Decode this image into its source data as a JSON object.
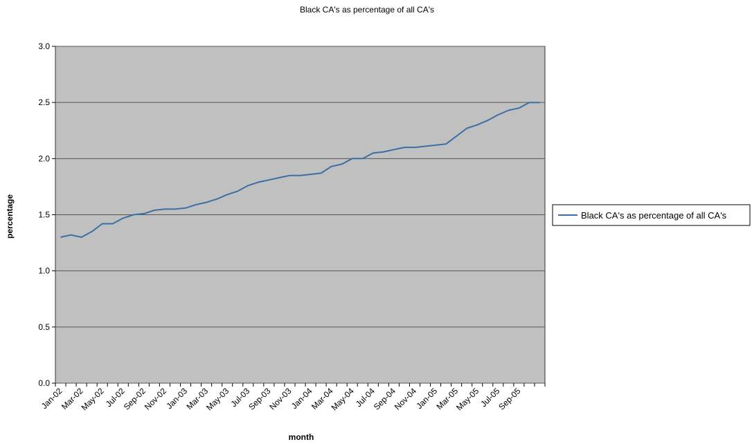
{
  "chart_data": {
    "type": "line",
    "title": "Black CA's as percentage of all CA's",
    "xlabel": "month",
    "ylabel": "percentage",
    "ylim": [
      0.0,
      3.0
    ],
    "yticks": [
      "0.0",
      "0.5",
      "1.0",
      "1.5",
      "2.0",
      "2.5",
      "3.0"
    ],
    "grid": true,
    "legend_position": "right",
    "x_tick_labels": [
      "Jan-02",
      "Mar-02",
      "May-02",
      "Jul-02",
      "Sep-02",
      "Nov-02",
      "Jan-03",
      "Mar-03",
      "May-03",
      "Jul-03",
      "Sep-03",
      "Nov-03",
      "Jan-04",
      "Mar-04",
      "May-04",
      "Jul-04",
      "Sep-04",
      "Nov-04",
      "Jan-05",
      "Mar-05",
      "May-05",
      "Jul-05",
      "Sep-05"
    ],
    "x": [
      "Jan-02",
      "Feb-02",
      "Mar-02",
      "Apr-02",
      "May-02",
      "Jun-02",
      "Jul-02",
      "Aug-02",
      "Sep-02",
      "Oct-02",
      "Nov-02",
      "Dec-02",
      "Jan-03",
      "Feb-03",
      "Mar-03",
      "Apr-03",
      "May-03",
      "Jun-03",
      "Jul-03",
      "Aug-03",
      "Sep-03",
      "Oct-03",
      "Nov-03",
      "Dec-03",
      "Jan-04",
      "Feb-04",
      "Mar-04",
      "Apr-04",
      "May-04",
      "Jun-04",
      "Jul-04",
      "Aug-04",
      "Sep-04",
      "Oct-04",
      "Nov-04",
      "Dec-04",
      "Jan-05",
      "Feb-05",
      "Mar-05",
      "Apr-05",
      "May-05",
      "Jun-05",
      "Jul-05",
      "Aug-05",
      "Sep-05",
      "Oct-05",
      "Nov-05"
    ],
    "series": [
      {
        "name": "Black CA's as percentage of all CA's",
        "color": "#3a6ea5",
        "values": [
          1.3,
          1.32,
          1.3,
          1.35,
          1.42,
          1.42,
          1.47,
          1.5,
          1.51,
          1.54,
          1.55,
          1.55,
          1.56,
          1.59,
          1.61,
          1.64,
          1.68,
          1.71,
          1.76,
          1.79,
          1.81,
          1.83,
          1.85,
          1.85,
          1.86,
          1.87,
          1.93,
          1.95,
          2.0,
          2.0,
          2.05,
          2.06,
          2.08,
          2.1,
          2.1,
          2.11,
          2.12,
          2.13,
          2.2,
          2.27,
          2.3,
          2.34,
          2.39,
          2.43,
          2.45,
          2.5,
          2.5
        ]
      }
    ],
    "plot_background": "#c0c0c0",
    "gridline_color": "#555555"
  }
}
